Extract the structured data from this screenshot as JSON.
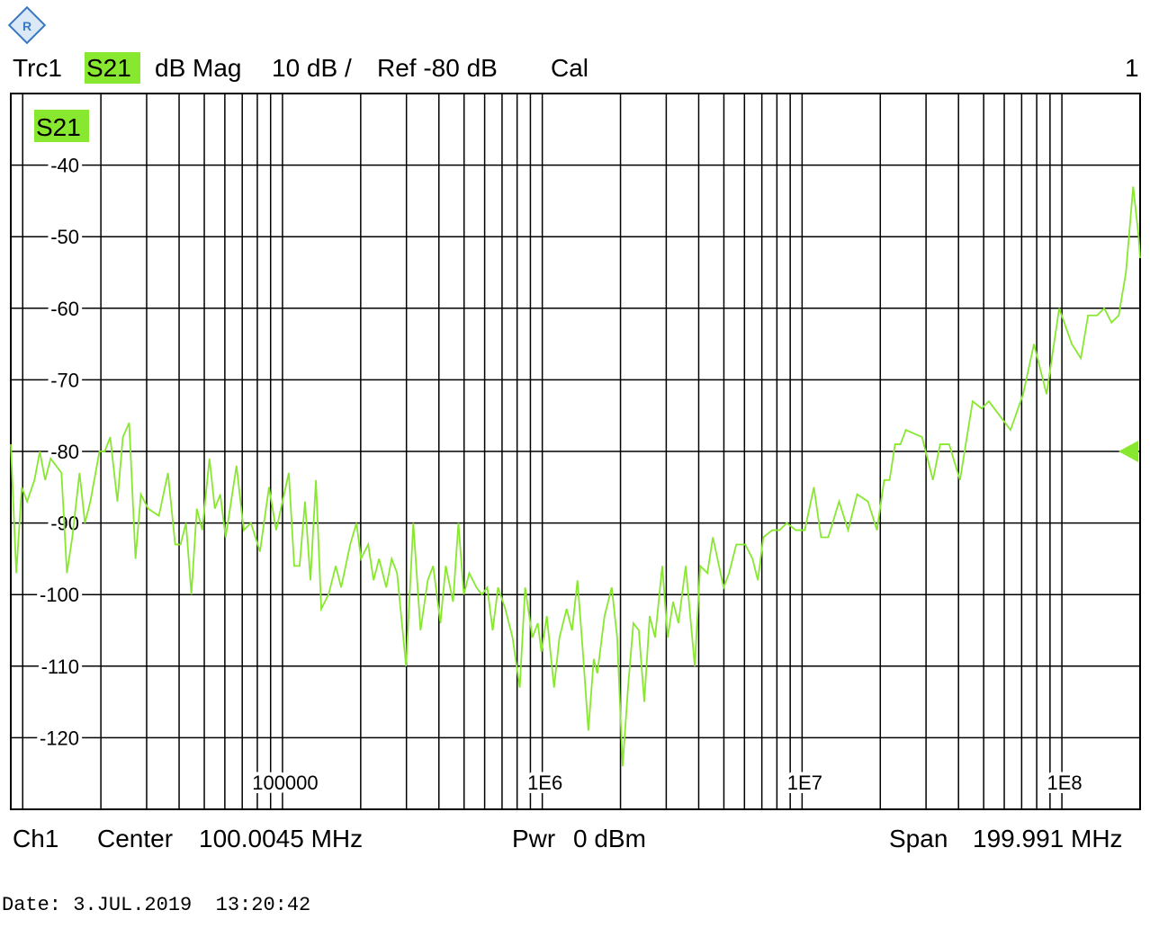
{
  "header": {
    "trace": "Trc1",
    "format": "dB Mag",
    "scale": "10 dB /",
    "ref": "Ref -80 dB",
    "cal": "Cal",
    "window": "1"
  },
  "footer": {
    "channel": "Ch1",
    "center_label": "Center",
    "center_value": "100.0045 MHz",
    "power_label": "Pwr",
    "power_value": "0 dBm",
    "span_label": "Span",
    "span_value": "199.991 MHz"
  },
  "date": "Date: 3.JUL.2019  13:20:42",
  "chart_data": {
    "type": "line",
    "log_x": true,
    "grid": true,
    "ref_level": -80,
    "xlim": [
      9000,
      200000000
    ],
    "ylim": [
      -130,
      -30
    ],
    "yticks": [
      -120,
      -110,
      -100,
      -90,
      -80,
      -70,
      -60,
      -50,
      -40
    ],
    "xticks": [
      100000,
      {
        "value": 1000000,
        "label": "1E6"
      },
      {
        "value": 10000000,
        "label": "1E7"
      },
      {
        "value": 100000000,
        "label": "1E8"
      }
    ],
    "xgrid": [
      10000,
      20000,
      30000,
      40000,
      50000,
      60000,
      70000,
      80000,
      90000,
      200000,
      300000,
      400000,
      500000,
      600000,
      700000,
      800000,
      900000,
      2000000,
      3000000,
      4000000,
      5000000,
      6000000,
      7000000,
      8000000,
      9000000,
      20000000,
      30000000,
      40000000,
      50000000,
      60000000,
      70000000,
      80000000,
      90000000
    ],
    "x": [
      9000,
      9450,
      9920,
      10400,
      11100,
      11640,
      12200,
      12810,
      13450,
      14100,
      14800,
      15520,
      16550,
      17360,
      18220,
      19740,
      20700,
      21720,
      23150,
      24300,
      25700,
      27180,
      28500,
      30400,
      33440,
      36240,
      38630,
      40530,
      42510,
      44600,
      46800,
      49100,
      52350,
      54900,
      57610,
      60430,
      66530,
      70930,
      75600,
      81900,
      88720,
      94560,
      105750,
      110960,
      116400,
      122100,
      128100,
      134500,
      141000,
      150400,
      160300,
      168200,
      182200,
      192700,
      200500,
      213800,
      224200,
      235300,
      250800,
      263200,
      276100,
      299000,
      318800,
      339900,
      362400,
      380200,
      405300,
      425100,
      453400,
      475600,
      498900,
      523500,
      558000,
      585400,
      614100,
      644200,
      675700,
      720400,
      768200,
      818900,
      859200,
      915800,
      961000,
      992200,
      1041000,
      1110000,
      1164000,
      1241000,
      1302000,
      1366000,
      1433000,
      1504000,
      1578000,
      1629000,
      1736000,
      1851000,
      1942000,
      2038000,
      2138000,
      2242000,
      2353000,
      2469000,
      2590000,
      2717000,
      2896000,
      3039000,
      3188000,
      3344000,
      3565000,
      3863000,
      4053000,
      4321000,
      4534000,
      4989000,
      5235000,
      5580000,
      6043000,
      6442000,
      6757000,
      7093000,
      7682000,
      8189000,
      8730000,
      9456000,
      10240000,
      11100000,
      11830000,
      12610000,
      13880000,
      15040000,
      16290000,
      17930000,
      19420000,
      20700000,
      21720000,
      22790000,
      23910000,
      25080000,
      28960000,
      31880000,
      33990000,
      36810000,
      40530000,
      45340000,
      49100000,
      52350000,
      57610000,
      63420000,
      70930000,
      78070000,
      87300000,
      97630000,
      109200000,
      118300000,
      126100000,
      136600000,
      145600000,
      155200000,
      165500000,
      176400000,
      188100000,
      197400000,
      200000000
    ],
    "series": [
      {
        "name": "S21",
        "color": "#88e830",
        "values": [
          -79,
          -97,
          -85,
          -87,
          -84,
          -80,
          -84,
          -81,
          -82,
          -83,
          -97,
          -92,
          -83,
          -90,
          -87,
          -80,
          -80,
          -78,
          -87,
          -78,
          -76,
          -95,
          -86,
          -88,
          -89,
          -83,
          -93,
          -93,
          -90,
          -100,
          -88,
          -91,
          -81,
          -88,
          -86,
          -92,
          -82,
          -91,
          -90,
          -94,
          -85,
          -91,
          -83,
          -96,
          -96,
          -87,
          -98,
          -84,
          -102,
          -100,
          -96,
          -99,
          -93,
          -90,
          -95,
          -93,
          -98,
          -95,
          -99,
          -95,
          -97,
          -110,
          -90,
          -105,
          -98,
          -96,
          -104,
          -96,
          -101,
          -90,
          -100,
          -97,
          -99,
          -100,
          -99,
          -105,
          -99,
          -102,
          -106,
          -113,
          -99,
          -106,
          -104,
          -108,
          -103,
          -113,
          -106,
          -102,
          -105,
          -98,
          -108,
          -119,
          -109,
          -111,
          -103,
          -99,
          -106,
          -124,
          -113,
          -104,
          -105,
          -115,
          -103,
          -106,
          -96,
          -106,
          -101,
          -104,
          -96,
          -110,
          -96,
          -97,
          -92,
          -99,
          -97,
          -93,
          -93,
          -95,
          -98,
          -92,
          -91,
          -91,
          -90,
          -91,
          -91,
          -85,
          -92,
          -92,
          -87,
          -91,
          -86,
          -87,
          -91,
          -84,
          -84,
          -79,
          -79,
          -77,
          -78,
          -84,
          -79,
          -79,
          -84,
          -73,
          -74,
          -73,
          -75,
          -77,
          -72,
          -65,
          -72,
          -60,
          -65,
          -67,
          -61,
          -61,
          -60,
          -62,
          -61,
          -55,
          -43,
          -50,
          -53
        ]
      }
    ]
  }
}
